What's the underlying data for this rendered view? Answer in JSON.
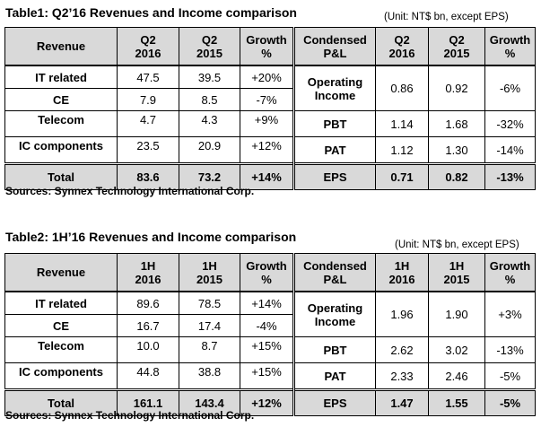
{
  "table1": {
    "title": "Table1: Q2’16 Revenues  and Income comparison",
    "unit": "(Unit: NT$ bn, except EPS)",
    "header": {
      "revenue": "Revenue",
      "c1": [
        "Q2",
        "2016"
      ],
      "c2": [
        "Q2",
        "2015"
      ],
      "growth": [
        "Growth",
        "%"
      ],
      "pl": [
        "Condensed",
        "P&L"
      ],
      "c3": [
        "Q2",
        "2016"
      ],
      "c4": [
        "Q2",
        "2015"
      ],
      "growth2": [
        "Growth",
        "%"
      ]
    },
    "revenue_rows": [
      {
        "label": "IT related",
        "a": "47.5",
        "b": "39.5",
        "g": "+20%"
      },
      {
        "label": "CE",
        "a": "7.9",
        "b": "8.5",
        "g": "-7%"
      },
      {
        "label": "Telecom",
        "a": "4.7",
        "b": "4.3",
        "g": "+9%"
      },
      {
        "label": "IC components",
        "a": "23.5",
        "b": "20.9",
        "g": "+12%"
      }
    ],
    "pl_rows": [
      {
        "label": [
          "Operating",
          "Income"
        ],
        "a": "0.86",
        "b": "0.92",
        "g": "-6%"
      },
      {
        "label": "PBT",
        "a": "1.14",
        "b": "1.68",
        "g": "-32%"
      },
      {
        "label": "PAT",
        "a": "1.12",
        "b": "1.30",
        "g": "-14%"
      }
    ],
    "total": {
      "label": "Total",
      "a": "83.6",
      "b": "73.2",
      "g": "+14%"
    },
    "eps": {
      "label": "EPS",
      "a": "0.71",
      "b": "0.82",
      "g": "-13%"
    },
    "source": "Sources: Synnex Technology International Corp."
  },
  "table2": {
    "title": "Table2: 1H’16 Revenues  and Income comparison",
    "unit": "(Unit: NT$ bn, except EPS)",
    "header": {
      "revenue": "Revenue",
      "c1": [
        "1H",
        "2016"
      ],
      "c2": [
        "1H",
        "2015"
      ],
      "growth": [
        "Growth",
        "%"
      ],
      "pl": [
        "Condensed",
        "P&L"
      ],
      "c3": [
        "1H",
        "2016"
      ],
      "c4": [
        "1H",
        "2015"
      ],
      "growth2": [
        "Growth",
        "%"
      ]
    },
    "revenue_rows": [
      {
        "label": "IT related",
        "a": "89.6",
        "b": "78.5",
        "g": "+14%"
      },
      {
        "label": "CE",
        "a": "16.7",
        "b": "17.4",
        "g": "-4%"
      },
      {
        "label": "Telecom",
        "a": "10.0",
        "b": "8.7",
        "g": "+15%"
      },
      {
        "label": "IC components",
        "a": "44.8",
        "b": "38.8",
        "g": "+15%"
      }
    ],
    "pl_rows": [
      {
        "label": [
          "Operating",
          "Income"
        ],
        "a": "1.96",
        "b": "1.90",
        "g": "+3%"
      },
      {
        "label": "PBT",
        "a": "2.62",
        "b": "3.02",
        "g": "-13%"
      },
      {
        "label": "PAT",
        "a": "2.33",
        "b": "2.46",
        "g": "-5%"
      }
    ],
    "total": {
      "label": "Total",
      "a": "161.1",
      "b": "143.4",
      "g": "+12%"
    },
    "eps": {
      "label": "EPS",
      "a": "1.47",
      "b": "1.55",
      "g": "-5%"
    },
    "source": "Sources: Synnex Technology International Corp."
  }
}
